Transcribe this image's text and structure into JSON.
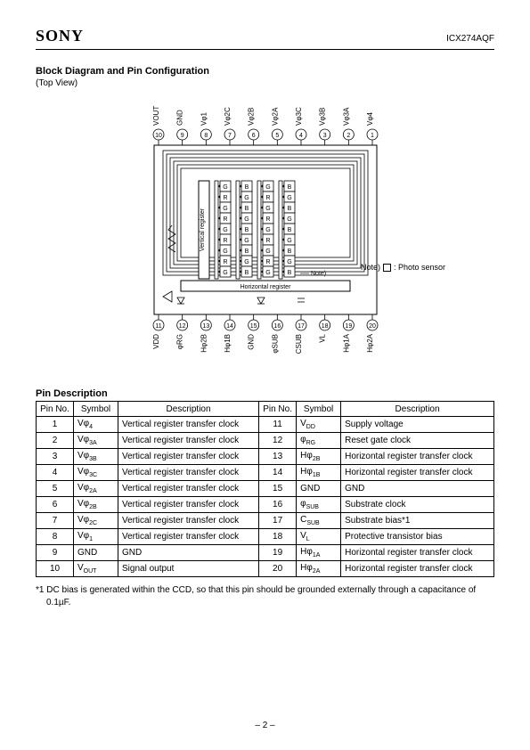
{
  "header": {
    "logo": "SONY",
    "part_number": "ICX274AQF"
  },
  "section": {
    "title": "Block Diagram and Pin Configuration",
    "subtitle": "(Top View)"
  },
  "diagram": {
    "type": "diagram",
    "background_color": "#ffffff",
    "stroke_color": "#000000",
    "stroke_width": 1,
    "pin_circle_radius": 6,
    "pin_label_fontsize": 8,
    "pins_top": [
      {
        "n": "10",
        "label": "VOUT"
      },
      {
        "n": "9",
        "label": "GND"
      },
      {
        "n": "8",
        "label": "Vφ1"
      },
      {
        "n": "7",
        "label": "Vφ2C"
      },
      {
        "n": "6",
        "label": "Vφ2B"
      },
      {
        "n": "5",
        "label": "Vφ2A"
      },
      {
        "n": "4",
        "label": "Vφ3C"
      },
      {
        "n": "3",
        "label": "Vφ3B"
      },
      {
        "n": "2",
        "label": "Vφ3A"
      },
      {
        "n": "1",
        "label": "Vφ4"
      }
    ],
    "pins_bottom": [
      {
        "n": "11",
        "label": "VDD"
      },
      {
        "n": "12",
        "label": "φRG"
      },
      {
        "n": "13",
        "label": "Hφ2B"
      },
      {
        "n": "14",
        "label": "Hφ1B"
      },
      {
        "n": "15",
        "label": "GND"
      },
      {
        "n": "16",
        "label": "φSUB"
      },
      {
        "n": "17",
        "label": "CSUB"
      },
      {
        "n": "18",
        "label": "VL"
      },
      {
        "n": "19",
        "label": "Hφ1A"
      },
      {
        "n": "20",
        "label": "Hφ2A"
      }
    ],
    "horizontal_register_label": "Horizontal register",
    "vertical_register_label": "Vertical register",
    "note_label": "Note)",
    "note_photo_sensor": ": Photo sensor",
    "cfa_cols": [
      [
        "G",
        "R",
        "G",
        "R",
        "G",
        "R",
        "G",
        "R",
        "G"
      ],
      [
        "B",
        "G",
        "B",
        "G",
        "B",
        "G",
        "B",
        "G",
        "B"
      ],
      [
        "G",
        "R",
        "G",
        "R",
        "G",
        "R",
        "G",
        "R",
        "G"
      ],
      [
        "B",
        "G",
        "B",
        "G",
        "B",
        "G",
        "B",
        "G",
        "B"
      ]
    ],
    "cfa_cell_w": 12,
    "cfa_cell_h": 12
  },
  "pin_description": {
    "title": "Pin Description",
    "columns": [
      "Pin No.",
      "Symbol",
      "Description",
      "Pin No.",
      "Symbol",
      "Description"
    ],
    "rows": [
      [
        "1",
        "Vφ4",
        "Vertical register transfer clock",
        "11",
        "VDD",
        "Supply voltage"
      ],
      [
        "2",
        "Vφ3A",
        "Vertical register transfer clock",
        "12",
        "φRG",
        "Reset gate clock"
      ],
      [
        "3",
        "Vφ3B",
        "Vertical register transfer clock",
        "13",
        "Hφ2B",
        "Horizontal register transfer clock"
      ],
      [
        "4",
        "Vφ3C",
        "Vertical register transfer clock",
        "14",
        "Hφ1B",
        "Horizontal register transfer clock"
      ],
      [
        "5",
        "Vφ2A",
        "Vertical register transfer clock",
        "15",
        "GND",
        "GND"
      ],
      [
        "6",
        "Vφ2B",
        "Vertical register transfer clock",
        "16",
        "φSUB",
        "Substrate clock"
      ],
      [
        "7",
        "Vφ2C",
        "Vertical register transfer clock",
        "17",
        "CSUB",
        "Substrate bias*1"
      ],
      [
        "8",
        "Vφ1",
        "Vertical register transfer clock",
        "18",
        "VL",
        "Protective transistor bias"
      ],
      [
        "9",
        "GND",
        "GND",
        "19",
        "Hφ1A",
        "Horizontal register transfer clock"
      ],
      [
        "10",
        "VOUT",
        "Signal output",
        "20",
        "Hφ2A",
        "Horizontal register transfer clock"
      ]
    ]
  },
  "footnote": "*1  DC bias is generated within the CCD, so that this pin should be grounded externally through a capacitance of 0.1µF.",
  "page_number": "– 2 –"
}
